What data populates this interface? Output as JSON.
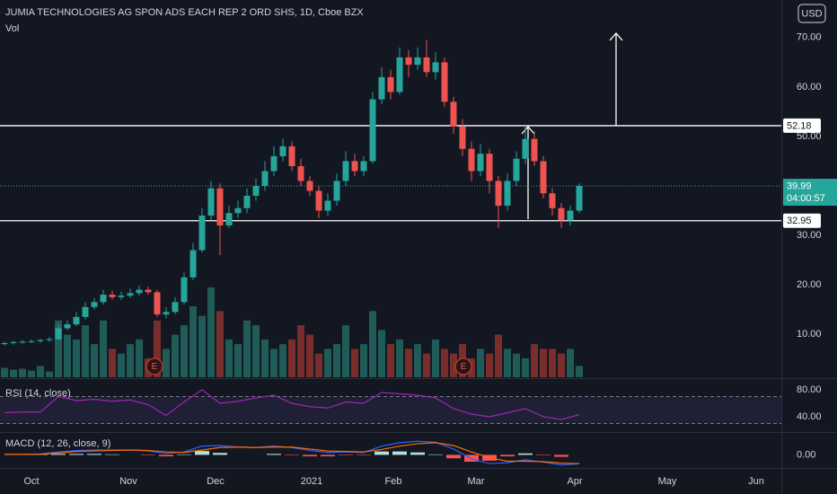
{
  "chart_data": {
    "type": "candlestick",
    "title": "JUMIA TECHNOLOGIES AG SPON ADS EACH REP 2 ORD SHS, 1D, Cboe BZX",
    "volume_label": "Vol",
    "currency": "USD",
    "xlim": [
      -0.5,
      86.5
    ],
    "xticks": [
      {
        "value": 3,
        "label": "Oct"
      },
      {
        "value": 13.8,
        "label": "Nov"
      },
      {
        "value": 23.5,
        "label": "Dec"
      },
      {
        "value": 34.2,
        "label": "2021"
      },
      {
        "value": 43.3,
        "label": "Feb"
      },
      {
        "value": 52.5,
        "label": "Mar"
      },
      {
        "value": 63.5,
        "label": "Apr"
      },
      {
        "value": 73.8,
        "label": "May"
      },
      {
        "value": 83.7,
        "label": "Jun"
      }
    ],
    "ylim": [
      1.3,
      77.6
    ],
    "yticks": [
      {
        "value": 70,
        "label": "70.00"
      },
      {
        "value": 60,
        "label": "60.00"
      },
      {
        "value": 50,
        "label": "50.00"
      },
      {
        "value": 30,
        "label": "30.00"
      },
      {
        "value": 20,
        "label": "20.00"
      },
      {
        "value": 10,
        "label": "10.00"
      }
    ],
    "open": [
      8.0,
      8.2,
      8.4,
      8.5,
      8.6,
      8.8,
      9.0,
      11.2,
      12.0,
      13.5,
      15.5,
      16.5,
      18.0,
      17.5,
      17.8,
      18.3,
      19.0,
      18.5,
      14.0,
      14.5,
      16.5,
      21.5,
      27.0,
      34.0,
      39.5,
      32.0,
      34.5,
      35.5,
      38.0,
      40.0,
      43.0,
      46.0,
      48.0,
      44.0,
      41.0,
      39.0,
      35.0,
      37.0,
      41.0,
      45.0,
      43.0,
      45.0,
      57.5,
      62.0,
      59.0,
      66.0,
      64.5,
      66.0,
      63.0,
      65.0,
      57.0,
      52.0,
      47.5,
      43.0,
      46.5,
      41.0,
      36.0,
      41.0,
      45.5,
      49.5,
      45.0,
      38.5,
      35.5,
      33.0,
      35.0
    ],
    "high": [
      8.5,
      8.7,
      8.8,
      8.9,
      9.1,
      9.4,
      12.0,
      12.8,
      14.5,
      16.5,
      17.3,
      19.0,
      18.8,
      18.6,
      19.2,
      19.8,
      19.6,
      19.0,
      15.5,
      17.5,
      22.5,
      28.5,
      35.5,
      41.0,
      40.5,
      36.0,
      37.0,
      39.5,
      41.5,
      45.0,
      48.0,
      49.5,
      49.0,
      45.5,
      42.0,
      40.0,
      38.5,
      42.5,
      47.0,
      46.5,
      46.0,
      59.0,
      64.0,
      63.5,
      68.0,
      67.5,
      68.0,
      69.5,
      67.0,
      66.0,
      58.0,
      53.5,
      49.0,
      48.5,
      47.5,
      42.0,
      42.5,
      47.0,
      52.0,
      51.0,
      46.0,
      39.5,
      36.5,
      36.0,
      40.5
    ],
    "low": [
      7.7,
      7.9,
      8.1,
      8.2,
      8.3,
      8.5,
      8.8,
      10.8,
      11.6,
      13.0,
      15.0,
      16.0,
      17.0,
      17.0,
      17.3,
      17.8,
      18.0,
      13.5,
      13.2,
      14.0,
      16.0,
      21.0,
      26.5,
      33.0,
      26.0,
      31.5,
      33.5,
      34.5,
      37.0,
      39.0,
      42.0,
      45.0,
      43.0,
      40.0,
      38.0,
      33.5,
      34.0,
      36.0,
      40.0,
      42.0,
      42.0,
      44.5,
      56.5,
      57.5,
      58.5,
      62.0,
      63.5,
      62.0,
      61.5,
      56.0,
      50.5,
      46.0,
      41.0,
      42.0,
      38.5,
      31.5,
      35.0,
      40.0,
      44.5,
      44.0,
      37.5,
      34.0,
      31.5,
      32.0,
      34.5
    ],
    "close": [
      8.2,
      8.4,
      8.5,
      8.6,
      8.8,
      9.0,
      11.2,
      12.0,
      13.5,
      15.5,
      16.5,
      18.0,
      17.5,
      17.8,
      18.3,
      19.0,
      18.5,
      14.0,
      14.5,
      16.5,
      21.5,
      27.0,
      34.0,
      39.5,
      32.0,
      34.5,
      35.5,
      38.0,
      40.0,
      43.0,
      46.0,
      48.0,
      44.0,
      41.0,
      39.0,
      35.0,
      37.0,
      41.0,
      45.0,
      43.0,
      45.0,
      57.5,
      62.0,
      59.0,
      66.0,
      64.5,
      66.0,
      63.0,
      65.0,
      57.0,
      52.0,
      47.5,
      43.0,
      46.5,
      41.0,
      36.0,
      41.0,
      45.5,
      49.5,
      45.0,
      38.5,
      35.5,
      33.0,
      35.0,
      39.99
    ],
    "volume": [
      10,
      8,
      9,
      7,
      12,
      6,
      60,
      45,
      40,
      55,
      35,
      60,
      30,
      25,
      35,
      40,
      20,
      60,
      30,
      45,
      55,
      75,
      65,
      95,
      70,
      40,
      35,
      60,
      55,
      40,
      30,
      35,
      40,
      55,
      45,
      25,
      30,
      35,
      55,
      30,
      35,
      70,
      50,
      35,
      40,
      30,
      35,
      25,
      40,
      30,
      25,
      35,
      20,
      30,
      25,
      45,
      30,
      25,
      20,
      35,
      30,
      30,
      25,
      30,
      12
    ],
    "up_color": "#26a69a",
    "down_color": "#ef5350",
    "volume_up_color": "#1f5c58",
    "volume_down_color": "#7a2e2c",
    "price_lines": [
      52.18,
      32.95
    ],
    "price_line_color": "#ffffff",
    "last_price": 39.99,
    "last_price_color": "#26a69a",
    "countdown": "04:00:57",
    "earnings": [
      {
        "x": 16.7,
        "label": "E"
      },
      {
        "x": 51.1,
        "label": "E"
      }
    ],
    "rsi": {
      "label": "RSI (14, close)",
      "color": "#9c27b0",
      "ylim": [
        18.7,
        92
      ],
      "yticks": [
        {
          "value": 80,
          "label": "80.00"
        },
        {
          "value": 40,
          "label": "40.00"
        }
      ],
      "bands": [
        70,
        30
      ],
      "x": [
        0,
        2,
        4,
        6,
        8,
        10,
        12,
        14,
        16,
        18,
        20,
        22,
        24,
        26,
        28,
        30,
        32,
        34,
        36,
        38,
        40,
        42,
        44,
        46,
        48,
        50,
        52,
        54,
        56,
        58,
        60,
        62,
        64
      ],
      "values": [
        46,
        47,
        47,
        70,
        64,
        66,
        63,
        65,
        58,
        42,
        62,
        80,
        60,
        63,
        68,
        72,
        60,
        55,
        53,
        62,
        60,
        76,
        74,
        72,
        68,
        52,
        44,
        40,
        46,
        52,
        40,
        36,
        43
      ]
    },
    "macd": {
      "label": "MACD (12, 26, close, 9)",
      "ylim": [
        -2.5,
        4.5
      ],
      "yticks": [
        {
          "value": 0,
          "label": "0.00"
        }
      ],
      "macd_color": "#2962ff",
      "signal_color": "#ff6d00",
      "hist_pos_color": "#b2dfdb",
      "hist_neg_color": "#ff5252",
      "x": [
        0,
        2,
        4,
        6,
        8,
        10,
        12,
        14,
        16,
        18,
        20,
        22,
        24,
        26,
        28,
        30,
        32,
        34,
        36,
        38,
        40,
        42,
        44,
        46,
        48,
        50,
        52,
        54,
        56,
        58,
        60,
        62,
        64
      ],
      "macd": [
        0.1,
        0.1,
        0.2,
        0.6,
        0.9,
        1.0,
        1.0,
        1.0,
        0.8,
        0.3,
        0.6,
        1.8,
        1.9,
        1.6,
        1.5,
        1.8,
        1.5,
        0.9,
        0.5,
        0.6,
        0.5,
        1.8,
        2.5,
        2.8,
        2.6,
        1.2,
        -0.8,
        -1.8,
        -1.6,
        -1.0,
        -1.5,
        -2.1,
        -1.8
      ],
      "signal": [
        0.1,
        0.1,
        0.1,
        0.4,
        0.7,
        0.8,
        0.9,
        1.0,
        0.9,
        0.6,
        0.5,
        1.0,
        1.5,
        1.6,
        1.5,
        1.6,
        1.6,
        1.2,
        0.8,
        0.7,
        0.6,
        1.1,
        1.8,
        2.3,
        2.5,
        1.9,
        0.6,
        -0.6,
        -1.3,
        -1.3,
        -1.4,
        -1.7,
        -1.8
      ],
      "histogram": [
        0,
        0,
        0.1,
        0.2,
        0.2,
        0.2,
        0.1,
        0,
        -0.1,
        -0.3,
        0.1,
        0.8,
        0.4,
        0,
        0,
        0.2,
        -0.1,
        -0.3,
        -0.3,
        -0.1,
        -0.1,
        0.7,
        0.7,
        0.5,
        0.1,
        -0.7,
        -1.4,
        -1.2,
        -0.3,
        0.3,
        -0.1,
        -0.4,
        0
      ]
    }
  }
}
